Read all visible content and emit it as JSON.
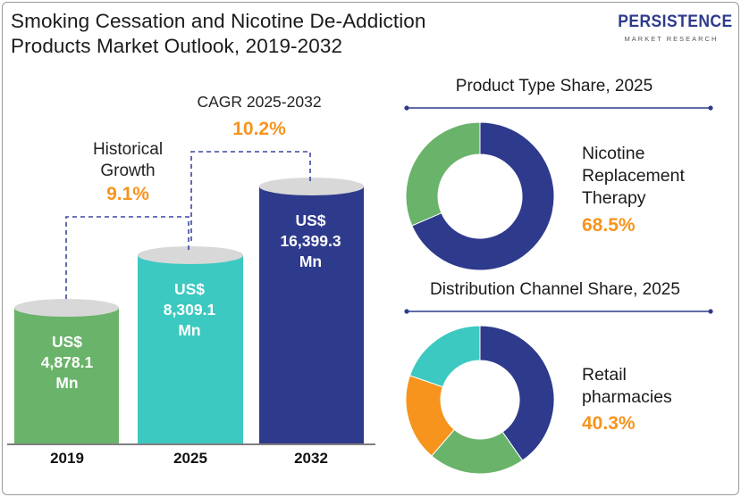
{
  "title_line1": "Smoking Cessation and Nicotine De-Addiction",
  "title_line2": "Products Market Outlook, 2019-2032",
  "logo": {
    "name": "PERSISTENCE",
    "tagline": "MARKET RESEARCH"
  },
  "growth": {
    "historical_label_1": "Historical",
    "historical_label_2": "Growth",
    "historical_value": "9.1%",
    "cagr_label": "CAGR 2025-2032",
    "cagr_value": "10.2%"
  },
  "colors": {
    "green": "#6ab36a",
    "teal": "#3cc9c1",
    "navy": "#2e3a8c",
    "orange": "#f7941d",
    "cap": "#d8d8d8"
  },
  "chart_data": [
    {
      "type": "bar",
      "categories": [
        "2019",
        "2025",
        "2032"
      ],
      "values": [
        4878.1,
        8309.1,
        16399.3
      ],
      "value_labels": [
        [
          "US$",
          "4,878.1",
          "Mn"
        ],
        [
          "US$",
          "8,309.1",
          "Mn"
        ],
        [
          "US$",
          "16,399.3",
          "Mn"
        ]
      ],
      "colors": [
        "#6ab36a",
        "#3cc9c1",
        "#2e3a8c"
      ]
    },
    {
      "type": "pie",
      "title": "Product Type  Share, 2025",
      "slices": [
        {
          "value": 68.5,
          "color": "#2e3a8c"
        },
        {
          "value": 31.5,
          "color": "#6ab36a"
        }
      ],
      "highlight_label_lines": [
        "Nicotine",
        "Replacement",
        "Therapy"
      ],
      "highlight_value": "68.5%"
    },
    {
      "type": "pie",
      "title": "Distribution Channel Share, 2025",
      "slices": [
        {
          "value": 40.3,
          "color": "#2e3a8c"
        },
        {
          "value": 21,
          "color": "#6ab36a"
        },
        {
          "value": 19,
          "color": "#f7941d"
        },
        {
          "value": 19.7,
          "color": "#3cc9c1"
        }
      ],
      "highlight_label_lines": [
        "Retail",
        "pharmacies"
      ],
      "highlight_value": "40.3%"
    }
  ]
}
